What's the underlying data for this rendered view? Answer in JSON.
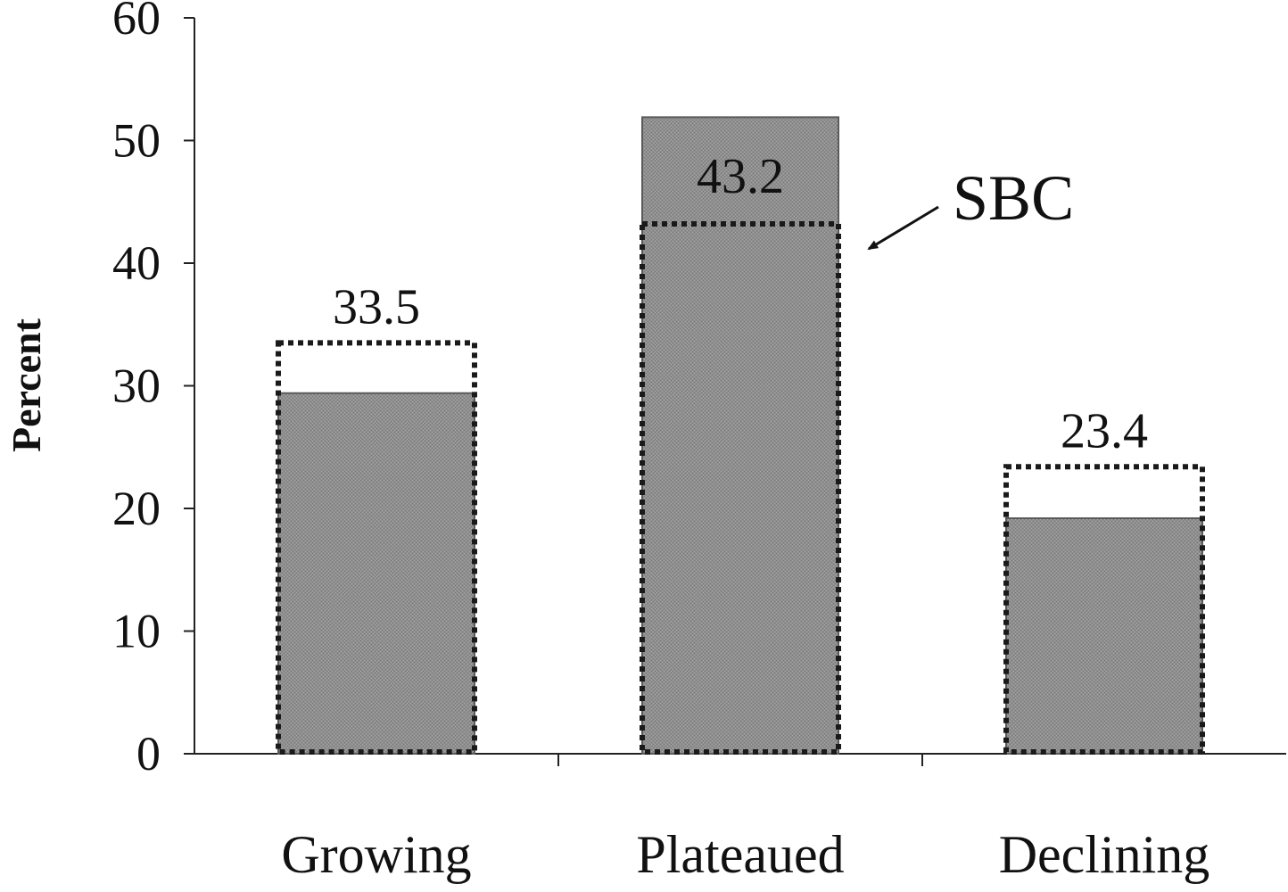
{
  "chart_data": {
    "type": "bar",
    "title": "",
    "xlabel": "",
    "ylabel": "Percent",
    "ylim": [
      0,
      60
    ],
    "yticks": [
      0,
      10,
      20,
      30,
      40,
      50,
      60
    ],
    "grid": false,
    "categories": [
      "Growing",
      "Plateaued",
      "Declining"
    ],
    "series": [
      {
        "values": [
          29.4,
          51.9,
          19.2
        ]
      },
      {
        "name": "SBC",
        "values": [
          33.5,
          43.2,
          23.4
        ]
      }
    ],
    "data_labels": [
      "33.5",
      "43.2",
      "23.4"
    ],
    "annotation": "SBC",
    "colors": {
      "bar_fill": "#8e8e8e",
      "bar_stroke": "#5a5a5a",
      "dotted_outline": "#1a1a1a",
      "axis": "#222222",
      "text": "#111111"
    }
  }
}
